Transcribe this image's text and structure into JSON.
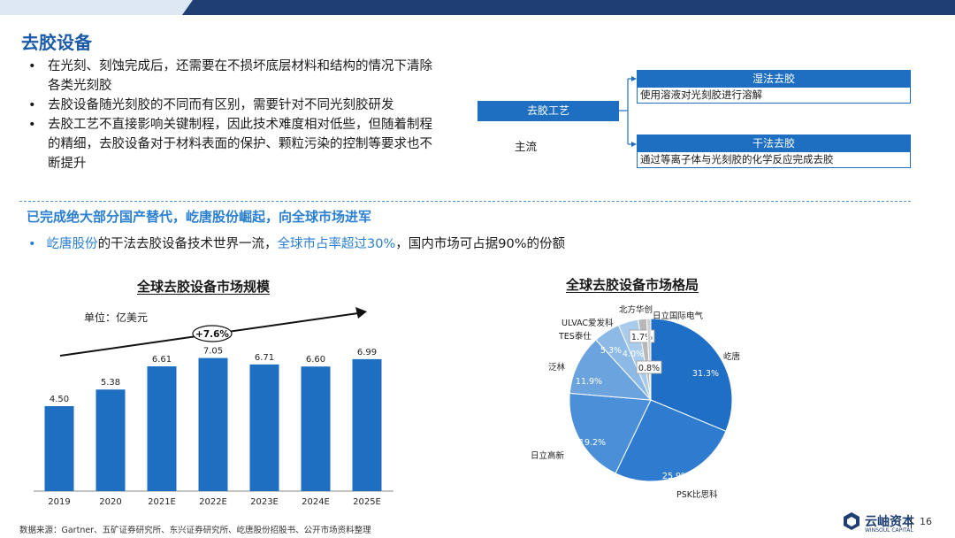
{
  "title": "去胶设备",
  "bullets": [
    "在光刻、刻蚀完成后，还需要在不损坏底层材料和结构的情况下清除各类光刻胶",
    "去胶设备随光刻胶的不同而有区别，需要针对不同光刻胶研发",
    "去胶工艺不直接影响关键制程，因此技术难度相对低些，但随着制程的精细，去胶设备对于材料表面的保护、颗粒污染的控制等要求也不断提升"
  ],
  "diagram": {
    "root": "去胶工艺",
    "mainstream_label": "主流",
    "methods": [
      {
        "name": "湿法去胶",
        "desc": "使用溶液对光刻胶进行溶解"
      },
      {
        "name": "干法去胶",
        "desc": "通过等离子体与光刻胶的化学反应完成去胶"
      }
    ]
  },
  "section": {
    "title": "已完成绝大部分国产替代，屹唐股份崛起，向全球市场进军",
    "bullet_parts": [
      "屹唐股份",
      "的干法去胶设备技术世界一流，",
      "全球市占率超过30%",
      "，国内市场可占据90%的份额"
    ]
  },
  "chart_data": [
    {
      "type": "bar",
      "title": "全球去胶设备市场规模",
      "unit_label": "单位：亿美元",
      "growth_label": "+7.6%",
      "categories": [
        "2019",
        "2020",
        "2021E",
        "2022E",
        "2023E",
        "2024E",
        "2025E"
      ],
      "values": [
        4.5,
        5.38,
        6.61,
        7.05,
        6.71,
        6.6,
        6.99
      ],
      "value_labels": [
        "4.50",
        "5.38",
        "6.61",
        "7.05",
        "6.71",
        "6.60",
        "6.99"
      ],
      "ylim": [
        0,
        7.5
      ],
      "color": "#1e6fc1"
    },
    {
      "type": "pie",
      "title": "全球去胶设备市场格局",
      "slices": [
        {
          "name": "屹唐",
          "value": 31.3,
          "label": "31.3%",
          "color": "#1f6fc6"
        },
        {
          "name": "PSK比思科",
          "value": 25.9,
          "label": "25.9%",
          "color": "#2e7bd0"
        },
        {
          "name": "日立高新",
          "value": 19.2,
          "label": "19.2%",
          "color": "#4a8fd8"
        },
        {
          "name": "泛林",
          "value": 11.9,
          "label": "11.9%",
          "color": "#6aa3de"
        },
        {
          "name": "TES泰仕",
          "value": 5.3,
          "label": "5.3%",
          "color": "#8cb9e6"
        },
        {
          "name": "ULVAC爱发科",
          "value": 4.0,
          "label": "4.0%",
          "color": "#a9cbec"
        },
        {
          "name": "北方华创",
          "value": 1.7,
          "label": "1.7%",
          "color": "#b8b8b8"
        },
        {
          "name": "日立国际电气",
          "value": 0.8,
          "label": "0.8%",
          "color": "#cfcfcf"
        }
      ]
    }
  ],
  "source": "数据来源：Gartner、五矿证券研究所、东兴证券研究所、屹唐股份招股书、公开市场资料整理",
  "logo": {
    "name": "云岫资本",
    "sub": "WINSOUL CAPITAL"
  },
  "page_number": "16",
  "colors": {
    "accent": "#1e6fc1",
    "title": "#1a5aa6",
    "highlight": "#2b7fd0",
    "band_dark": "#1f3f73"
  }
}
